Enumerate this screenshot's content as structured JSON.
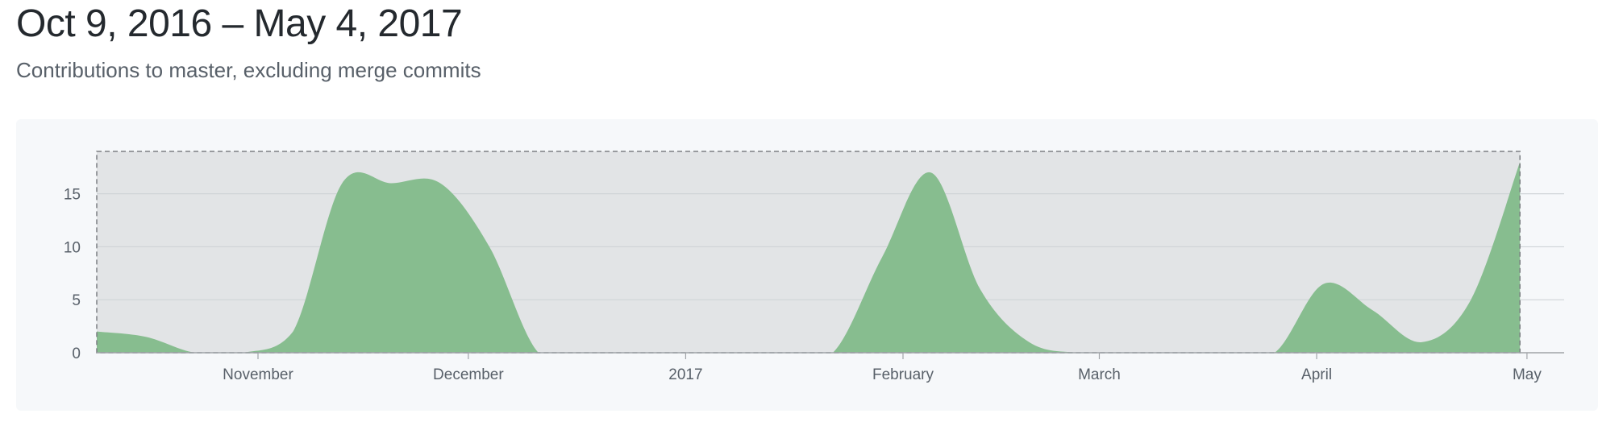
{
  "header": {
    "title": "Oct 9, 2016 – May 4, 2017",
    "subtitle": "Contributions to master, excluding merge commits"
  },
  "colors": {
    "area_fill": "#87bd8f",
    "area_stroke": "#6aa473",
    "selection_bg": "#e2e4e6",
    "gridline": "#cfd3d7",
    "axis": "#a0a4a8",
    "selection_border": "#7c7f83"
  },
  "chart_data": {
    "type": "area",
    "title": "",
    "xlabel": "",
    "ylabel": "",
    "series": [
      {
        "x": [
          "2016-10-09",
          "2016-10-16",
          "2016-10-23",
          "2016-10-30",
          "2016-11-06",
          "2016-11-13",
          "2016-11-20",
          "2016-11-27",
          "2016-12-04",
          "2016-12-11",
          "2016-12-18",
          "2016-12-25",
          "2017-01-01",
          "2017-01-08",
          "2017-01-15",
          "2017-01-22",
          "2017-01-29",
          "2017-02-05",
          "2017-02-12",
          "2017-02-19",
          "2017-02-26",
          "2017-03-05",
          "2017-03-12",
          "2017-03-19",
          "2017-03-26",
          "2017-04-02",
          "2017-04-09",
          "2017-04-16",
          "2017-04-23",
          "2017-04-30"
        ],
        "values": [
          2,
          1.5,
          0,
          0,
          2,
          16,
          16,
          16,
          10,
          0,
          0,
          0,
          0,
          0,
          0,
          0,
          9,
          17,
          6,
          1,
          0,
          0,
          0,
          0,
          0,
          6.5,
          4,
          1,
          5,
          18
        ]
      }
    ],
    "x_tick_labels": [
      "November",
      "December",
      "2017",
      "February",
      "March",
      "April",
      "May"
    ],
    "x_tick_dates": [
      "2016-11-01",
      "2016-12-01",
      "2017-01-01",
      "2017-02-01",
      "2017-03-01",
      "2017-04-01",
      "2017-05-01"
    ],
    "y_ticks": [
      0,
      5,
      10,
      15
    ],
    "ylim": [
      0,
      19
    ],
    "xlim": [
      "2016-10-09",
      "2017-05-04"
    ],
    "grid": true,
    "selection_range": [
      "2016-10-09",
      "2017-04-30"
    ]
  }
}
